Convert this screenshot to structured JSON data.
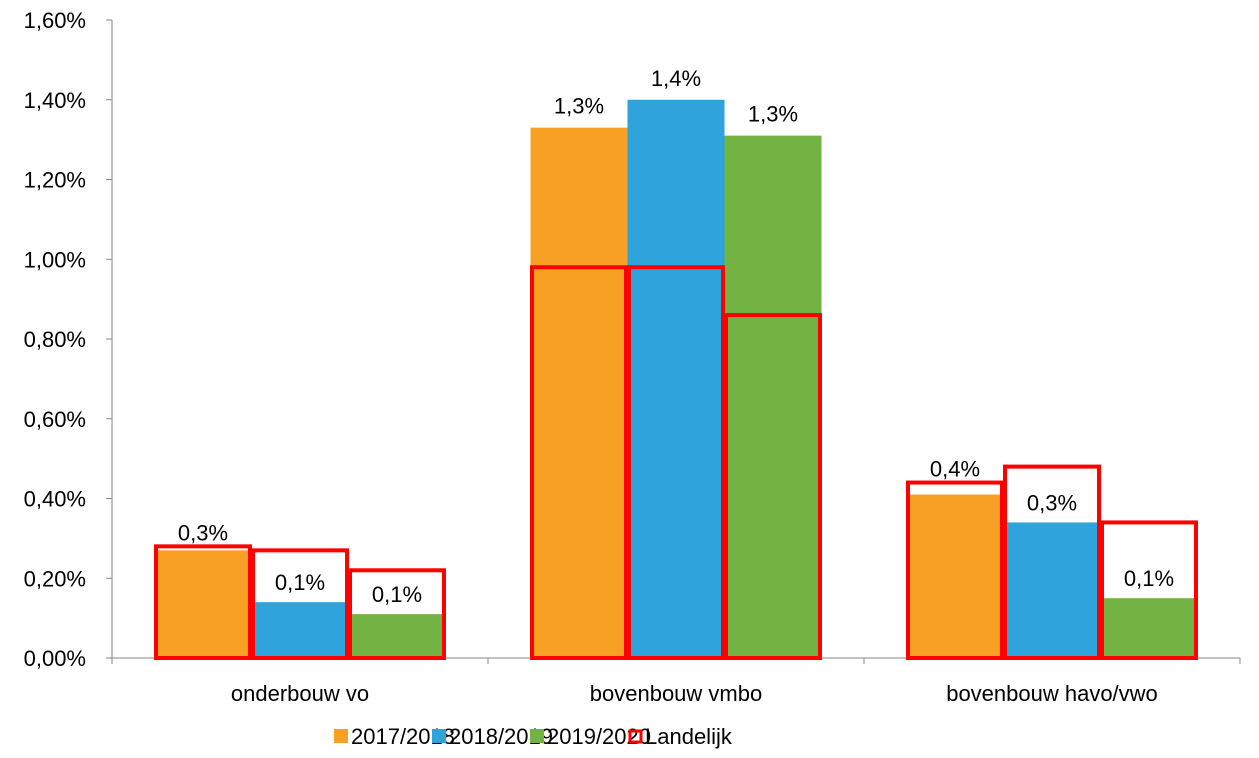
{
  "chart_data": {
    "type": "bar",
    "title": "",
    "xlabel": "",
    "ylabel": "",
    "categories": [
      "onderbouw vo",
      "bovenbouw vmbo",
      "bovenbouw havo/vwo"
    ],
    "y_ticks": [
      "0,00%",
      "0,20%",
      "0,40%",
      "0,60%",
      "0,80%",
      "1,00%",
      "1,20%",
      "1,40%",
      "1,60%"
    ],
    "ylim": [
      0,
      1.6
    ],
    "grid": false,
    "legend_position": "bottom",
    "series": [
      {
        "name": "2017/2018",
        "color": "#F7A024",
        "values": [
          0.27,
          1.33,
          0.41
        ],
        "labels": [
          "0,3%",
          "1,3%",
          "0,4%"
        ]
      },
      {
        "name": "2018/2019",
        "color": "#2FA3DB",
        "values": [
          0.14,
          1.4,
          0.34
        ],
        "labels": [
          "0,1%",
          "1,4%",
          "0,3%"
        ]
      },
      {
        "name": "2019/2020",
        "color": "#73B343",
        "values": [
          0.11,
          1.31,
          0.15
        ],
        "labels": [
          "0,1%",
          "1,3%",
          "0,1%"
        ]
      }
    ],
    "landelijk": {
      "name": "Landelijk",
      "color": "#FF0000",
      "values": [
        [
          0.28,
          0.27,
          0.22
        ],
        [
          0.98,
          0.98,
          0.86
        ],
        [
          0.44,
          0.48,
          0.34
        ]
      ]
    }
  }
}
